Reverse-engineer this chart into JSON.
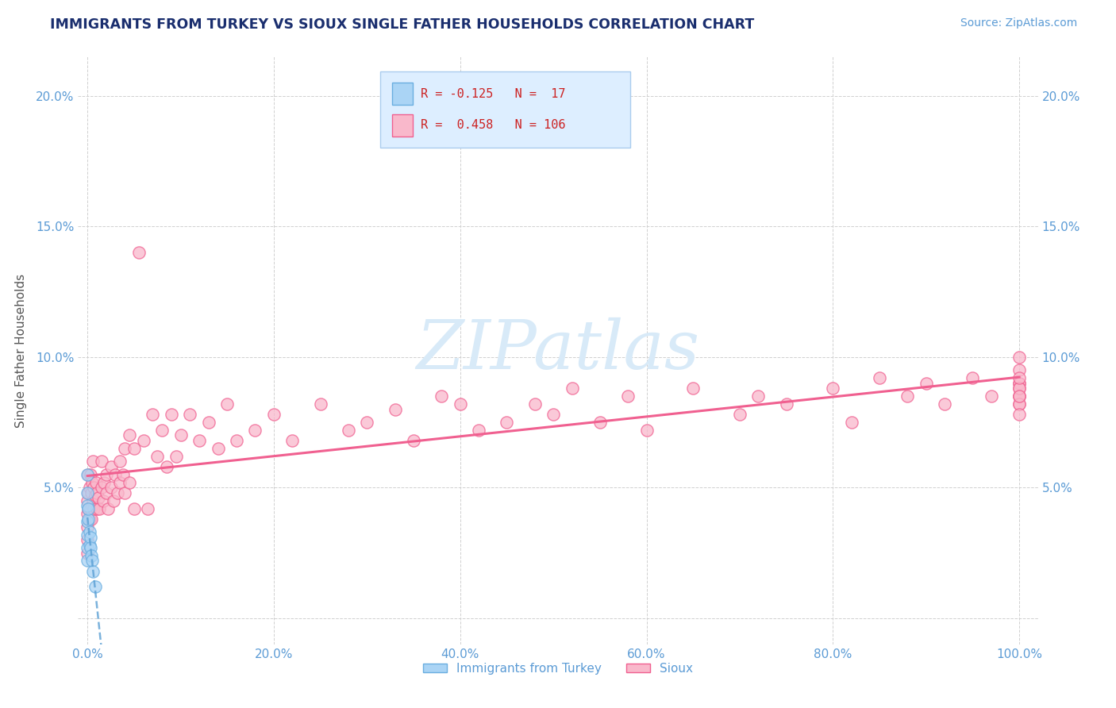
{
  "title": "IMMIGRANTS FROM TURKEY VS SIOUX SINGLE FATHER HOUSEHOLDS CORRELATION CHART",
  "source": "Source: ZipAtlas.com",
  "ylabel": "Single Father Households",
  "xlim": [
    -0.01,
    1.02
  ],
  "ylim": [
    -0.01,
    0.215
  ],
  "xtick_vals": [
    0.0,
    0.2,
    0.4,
    0.6,
    0.8,
    1.0
  ],
  "xticklabels": [
    "0.0%",
    "20.0%",
    "40.0%",
    "60.0%",
    "80.0%",
    "100.0%"
  ],
  "ytick_vals": [
    0.0,
    0.05,
    0.1,
    0.15,
    0.2
  ],
  "yticklabels_left": [
    "",
    "5.0%",
    "10.0%",
    "15.0%",
    "20.0%"
  ],
  "ytick_right_vals": [
    0.05,
    0.1,
    0.15,
    0.2
  ],
  "yticklabels_right": [
    "5.0%",
    "10.0%",
    "15.0%",
    "20.0%"
  ],
  "legend_r1": "-0.125",
  "legend_n1": "17",
  "legend_r2": "0.458",
  "legend_n2": "106",
  "color_turkey": "#aad4f5",
  "color_sioux": "#f9b8cb",
  "edge_turkey": "#6aaee0",
  "edge_sioux": "#f06090",
  "line_turkey": "#5a9fd4",
  "line_sioux": "#f06090",
  "title_color": "#1a2e6e",
  "source_color": "#5b9bd5",
  "tick_color": "#5b9bd5",
  "ylabel_color": "#555555",
  "watermark_color": "#d8eaf8",
  "turkey_x": [
    0.0,
    0.0,
    0.0,
    0.0,
    0.0,
    0.0,
    0.0,
    0.001,
    0.001,
    0.002,
    0.002,
    0.003,
    0.003,
    0.004,
    0.005,
    0.006,
    0.008
  ],
  "turkey_y": [
    0.055,
    0.048,
    0.043,
    0.037,
    0.032,
    0.027,
    0.022,
    0.038,
    0.042,
    0.028,
    0.033,
    0.031,
    0.027,
    0.024,
    0.022,
    0.018,
    0.012
  ],
  "sioux_x": [
    0.0,
    0.0,
    0.0,
    0.0,
    0.0,
    0.001,
    0.001,
    0.001,
    0.002,
    0.002,
    0.003,
    0.003,
    0.004,
    0.004,
    0.005,
    0.005,
    0.006,
    0.006,
    0.007,
    0.007,
    0.008,
    0.009,
    0.01,
    0.01,
    0.012,
    0.013,
    0.015,
    0.015,
    0.017,
    0.018,
    0.02,
    0.02,
    0.022,
    0.025,
    0.025,
    0.028,
    0.03,
    0.032,
    0.035,
    0.035,
    0.038,
    0.04,
    0.04,
    0.045,
    0.045,
    0.05,
    0.05,
    0.055,
    0.06,
    0.065,
    0.07,
    0.075,
    0.08,
    0.085,
    0.09,
    0.095,
    0.1,
    0.11,
    0.12,
    0.13,
    0.14,
    0.15,
    0.16,
    0.18,
    0.2,
    0.22,
    0.25,
    0.28,
    0.3,
    0.33,
    0.35,
    0.38,
    0.4,
    0.42,
    0.45,
    0.48,
    0.5,
    0.52,
    0.55,
    0.58,
    0.6,
    0.65,
    0.7,
    0.72,
    0.75,
    0.8,
    0.82,
    0.85,
    0.88,
    0.9,
    0.92,
    0.95,
    0.97,
    1.0,
    1.0,
    1.0,
    1.0,
    1.0,
    1.0,
    1.0,
    1.0,
    1.0,
    1.0,
    1.0,
    1.0,
    1.0
  ],
  "sioux_y": [
    0.035,
    0.04,
    0.045,
    0.03,
    0.025,
    0.042,
    0.048,
    0.055,
    0.038,
    0.05,
    0.042,
    0.055,
    0.038,
    0.048,
    0.043,
    0.052,
    0.045,
    0.06,
    0.042,
    0.05,
    0.047,
    0.052,
    0.042,
    0.048,
    0.046,
    0.042,
    0.05,
    0.06,
    0.045,
    0.052,
    0.048,
    0.055,
    0.042,
    0.05,
    0.058,
    0.045,
    0.055,
    0.048,
    0.06,
    0.052,
    0.055,
    0.048,
    0.065,
    0.052,
    0.07,
    0.042,
    0.065,
    0.14,
    0.068,
    0.042,
    0.078,
    0.062,
    0.072,
    0.058,
    0.078,
    0.062,
    0.07,
    0.078,
    0.068,
    0.075,
    0.065,
    0.082,
    0.068,
    0.072,
    0.078,
    0.068,
    0.082,
    0.072,
    0.075,
    0.08,
    0.068,
    0.085,
    0.082,
    0.072,
    0.075,
    0.082,
    0.078,
    0.088,
    0.075,
    0.085,
    0.072,
    0.088,
    0.078,
    0.085,
    0.082,
    0.088,
    0.075,
    0.092,
    0.085,
    0.09,
    0.082,
    0.092,
    0.085,
    0.09,
    0.1,
    0.085,
    0.09,
    0.095,
    0.088,
    0.082,
    0.085,
    0.088,
    0.082,
    0.078,
    0.085,
    0.092
  ]
}
